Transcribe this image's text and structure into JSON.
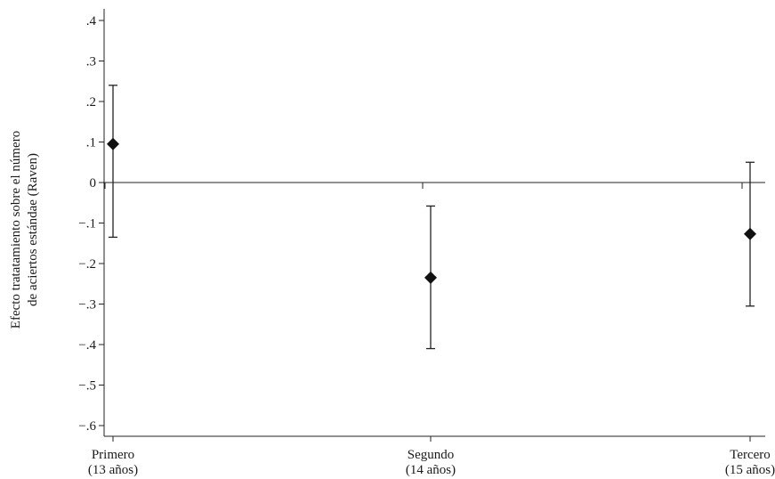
{
  "chart_data": {
    "type": "scatter",
    "title": "",
    "ylabel_line1": "Efecto tratatamiento sobre el número",
    "ylabel_line2": "de aciertos estándae (Raven)",
    "xlabel": "",
    "ylim": [
      -0.65,
      0.42
    ],
    "y_ticks": [
      0.4,
      0.3,
      0.2,
      0.1,
      0,
      -0.1,
      -0.2,
      -0.3,
      -0.4,
      -0.5,
      -0.6
    ],
    "y_tick_labels": [
      ".4",
      ".3",
      ".2",
      ".1",
      "0",
      "−.1",
      "−.2",
      "−.3",
      "−.4",
      "−.5",
      "−.6"
    ],
    "categories": [
      {
        "line1": "Primero",
        "line2": "(13 años)"
      },
      {
        "line1": "Segundo",
        "line2": "(14 años)"
      },
      {
        "line1": "Tercero",
        "line2": "(15 años)"
      }
    ],
    "series": [
      {
        "points": [
          {
            "estimate": 0.095,
            "ci_low": -0.135,
            "ci_high": 0.24
          },
          {
            "estimate": -0.235,
            "ci_low": -0.41,
            "ci_high": -0.058
          },
          {
            "estimate": -0.127,
            "ci_low": -0.305,
            "ci_high": 0.05
          }
        ]
      }
    ],
    "reference_line": 0,
    "grid": false,
    "colors": {
      "marker": "#111111",
      "lines": "#222222"
    }
  }
}
